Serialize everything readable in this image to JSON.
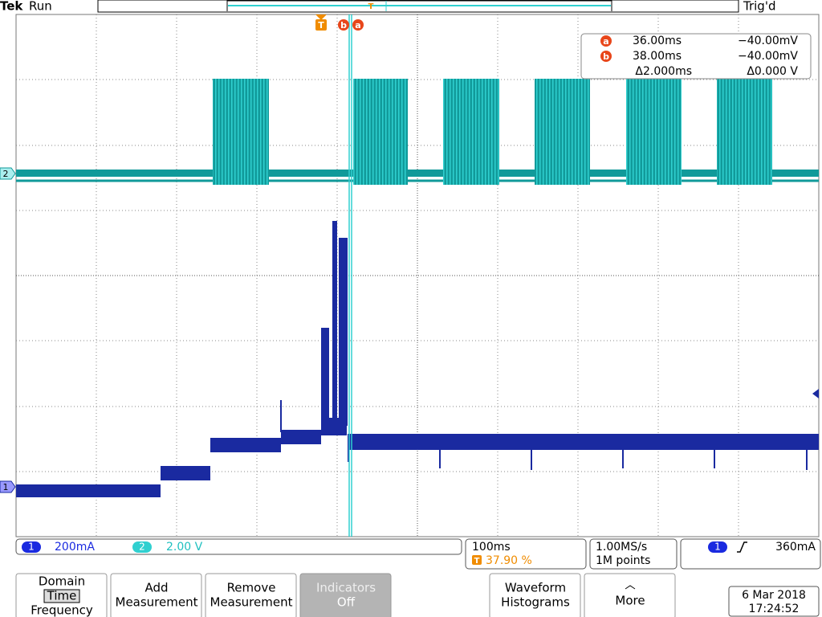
{
  "header": {
    "brand": "Tek",
    "state": "Run",
    "trigger_status": "Trig'd"
  },
  "markers": {
    "trigger": "T",
    "cursor_b": "b",
    "cursor_a": "a",
    "record_trigger": "T"
  },
  "cursor_readout": {
    "a": {
      "label": "a",
      "time": "36.00ms",
      "value": "−40.00mV"
    },
    "b": {
      "label": "b",
      "time": "38.00ms",
      "value": "−40.00mV"
    },
    "delta": {
      "time": "Δ2.000ms",
      "value": "Δ0.000 V"
    }
  },
  "channels": {
    "ch2_label": "2",
    "ch1_label": "1"
  },
  "status_bar": {
    "ch1": {
      "label": "1",
      "scale": "200mA"
    },
    "ch2": {
      "label": "2",
      "scale": "2.00 V"
    },
    "horizontal": {
      "scale": "100ms",
      "trigger_marker": "T",
      "position": "37.90 %"
    },
    "acquisition": {
      "sample_rate": "1.00MS/s",
      "record_length": "1M points"
    },
    "trigger": {
      "source": "1",
      "level": "360mA"
    }
  },
  "buttons": [
    {
      "lines": [
        "Domain",
        "Time",
        "Frequency"
      ]
    },
    {
      "lines": [
        "Add",
        "Measurement"
      ]
    },
    {
      "lines": [
        "Remove",
        "Measurement"
      ]
    },
    {
      "lines": [
        "Indicators",
        "Off"
      ]
    },
    {
      "lines": [
        "Waveform",
        "Histograms"
      ]
    },
    {
      "lines": [
        "More"
      ]
    }
  ],
  "datetime": {
    "date": "6 Mar 2018",
    "time": "17:24:52"
  }
}
